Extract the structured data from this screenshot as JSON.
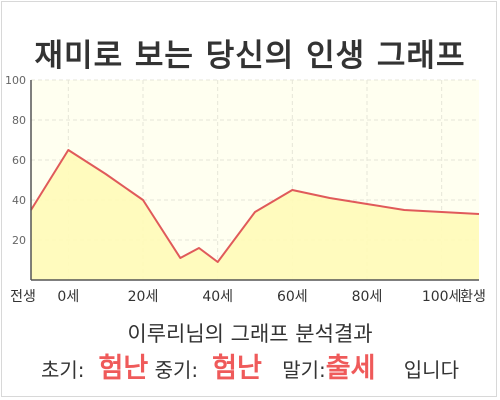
{
  "title": "재미로 보는 당신의 인생 그래프",
  "summary": "이루리님의 그래프 분석결과",
  "result": {
    "early_label": "초기:",
    "early_value": "험난",
    "middle_label": "중기:",
    "middle_value": "험난",
    "late_label": "말기:",
    "late_value": "출세",
    "suffix": "입니다"
  },
  "colors": {
    "line": "#e05a5a",
    "area": "#fffbb8",
    "plot_bg": "#fffff0",
    "highlight": "#ef5a5a"
  },
  "chart_data": {
    "type": "area",
    "x_tick_labels": [
      "전생",
      "0세",
      "20세",
      "40세",
      "60세",
      "80세",
      "100세",
      "환생"
    ],
    "y_ticks": [
      20,
      40,
      60,
      80,
      100
    ],
    "ylim": [
      0,
      100
    ],
    "grid": true,
    "series": [
      {
        "x": [
          -10,
          0,
          10,
          20,
          30,
          35,
          40,
          50,
          60,
          70,
          80,
          90,
          100,
          110
        ],
        "y": [
          35,
          65,
          53,
          40,
          11,
          16,
          9,
          34,
          45,
          41,
          38,
          35,
          34,
          33
        ]
      }
    ]
  }
}
